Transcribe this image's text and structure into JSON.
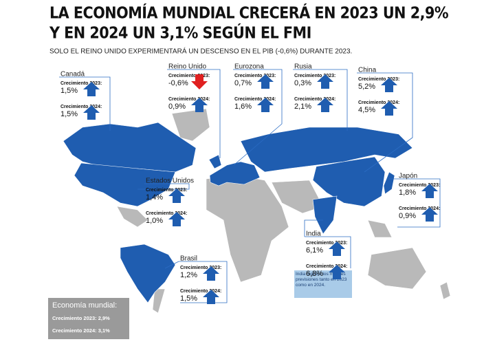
{
  "header": {
    "title_line1": "LA ECONOMÍA MUNDIAL CRECERÁ EN 2023 UN 2,9%",
    "title_line2": "Y EN 2024 UN 3,1% SEGÚN EL FMI",
    "subtitle": "SOLO EL REINO UNIDO EXPERIMENTARÁ UN DESCENSO EN EL PIB (-0,6%) DURANTE 2023."
  },
  "callouts": [
    {
      "name": "Canadá",
      "items": [
        {
          "label": "Crecimiento 2023:",
          "value": "1,5%"
        },
        {
          "label": "Crecimiento 2024:",
          "value": "1,5%"
        }
      ]
    },
    {
      "name": "Reino Unido",
      "items": [
        {
          "label": "Crecimiento 2023:",
          "value": "-0,6%"
        },
        {
          "label": "Crecimiento 2024:",
          "value": "0,9%"
        }
      ]
    },
    {
      "name": "Eurozona",
      "items": [
        {
          "label": "Crecimiento 2023:",
          "value": "0,7%"
        },
        {
          "label": "Crecimiento 2024:",
          "value": "1,6%"
        }
      ]
    },
    {
      "name": "Rusia",
      "items": [
        {
          "label": "Crecimiento 2023:",
          "value": "0,3%"
        },
        {
          "label": "Crecimiento 2024:",
          "value": "2,1%"
        }
      ]
    },
    {
      "name": "China",
      "items": [
        {
          "label": "Crecimiento 2023:",
          "value": "5,2%"
        },
        {
          "label": "Crecimiento 2024:",
          "value": "4,5%"
        }
      ]
    },
    {
      "name": "Estados Unidos",
      "items": [
        {
          "label": "Crecimiento 2023:",
          "value": "1,4%"
        },
        {
          "label": "Crecimiento 2024:",
          "value": "1,0%"
        }
      ]
    },
    {
      "name": "Japón",
      "items": [
        {
          "label": "Crecimiento 2023:",
          "value": "1,8%"
        },
        {
          "label": "Crecimiento 2024:",
          "value": "0,9%"
        }
      ]
    },
    {
      "name": "India",
      "items": [
        {
          "label": "Crecimiento 2023:",
          "value": "6,1%"
        },
        {
          "label": "Crecimiento 2024:",
          "value": "6,8%"
        }
      ]
    },
    {
      "name": "Brasil",
      "items": [
        {
          "label": "Crecimiento 2023:",
          "value": "1,2%"
        },
        {
          "label": "Crecimiento 2024:",
          "value": "1,5%"
        }
      ]
    }
  ],
  "india_note": "India registra los mejores previsiones tanto en 2023 como en 2024.",
  "world": {
    "heading": "Economía mundial:",
    "line1": "Crecimiento 2023: 2,9%",
    "line2": "Crecimiento 2024: 3,1%"
  }
}
